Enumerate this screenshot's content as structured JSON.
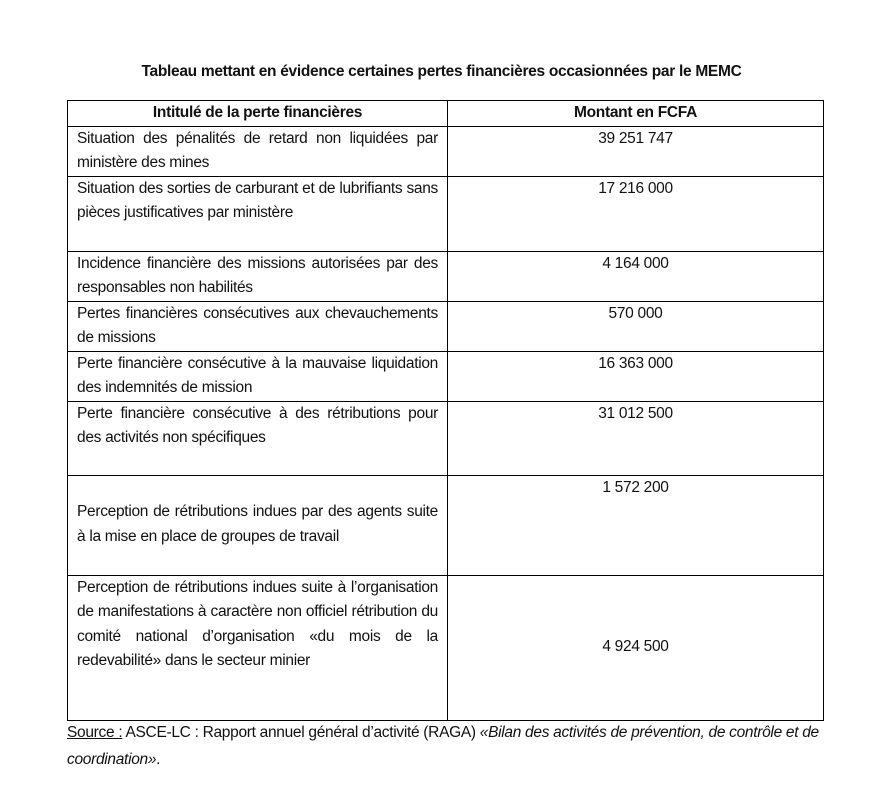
{
  "title": "Tableau mettant en évidence certaines pertes financières occasionnées par le MEMC",
  "table": {
    "headers": [
      "Intitulé de la perte financières",
      "Montant en FCFA"
    ],
    "rows": [
      {
        "label": "Situation des pénalités de retard non liquidées par ministère des mines",
        "amount": "39 251 747"
      },
      {
        "label": "Situation des sorties de carburant et de lubrifiants sans pièces justificatives par ministère",
        "amount": "17 216 000"
      },
      {
        "label": "Incidence financière des missions autorisées par des responsables non habilités",
        "amount": "4 164 000"
      },
      {
        "label": "Pertes financières consécutives aux chevauchements de missions",
        "amount": "570 000"
      },
      {
        "label": "Perte financière consécutive à la mauvaise liquidation des indemnités de mission",
        "amount": "16 363 000"
      },
      {
        "label": "Perte financière consécutive à des rétributions pour des activités non spécifiques",
        "amount": "31 012 500"
      },
      {
        "label": "Perception de rétributions indues par des agents suite à la mise en place de groupes de travail",
        "amount": "1 572 200"
      },
      {
        "label": "Perception de rétributions indues suite à l’organisation de manifestations à caractère non officiel rétribution du comité national d’organisation «du mois de la redevabilité» dans le secteur minier",
        "amount": "4 924 500"
      }
    ]
  },
  "source": {
    "label": "Source :",
    "text": " ASCE-LC : Rapport annuel général d’activité (RAGA) ",
    "italic": "«Bilan des activités de prévention, de contrôle et de coordination»",
    "end": "."
  }
}
